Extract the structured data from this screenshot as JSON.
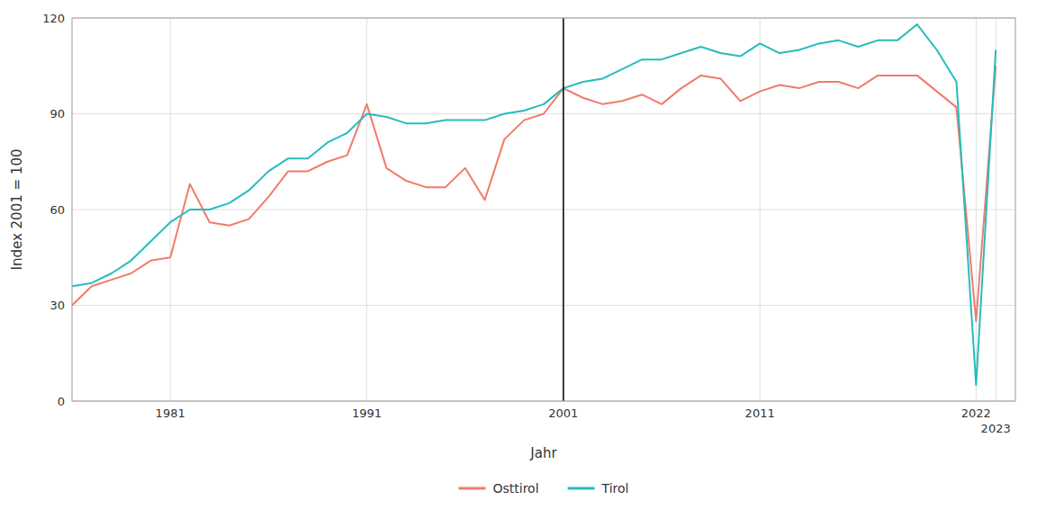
{
  "chart_data": {
    "type": "line",
    "xlabel": "Jahr",
    "ylabel": "Index 2001 = 100",
    "x": [
      1976,
      1977,
      1978,
      1979,
      1980,
      1981,
      1982,
      1983,
      1984,
      1985,
      1986,
      1987,
      1988,
      1989,
      1990,
      1991,
      1992,
      1993,
      1994,
      1995,
      1996,
      1997,
      1998,
      1999,
      2000,
      2001,
      2002,
      2003,
      2004,
      2005,
      2006,
      2007,
      2008,
      2009,
      2010,
      2011,
      2012,
      2013,
      2014,
      2015,
      2016,
      2017,
      2018,
      2019,
      2020,
      2021,
      2022,
      2023
    ],
    "series": [
      {
        "name": "Osttirol",
        "color": "#F07B6B",
        "values": [
          30,
          36,
          38,
          40,
          44,
          45,
          68,
          56,
          55,
          57,
          64,
          72,
          72,
          75,
          77,
          93,
          73,
          69,
          67,
          67,
          73,
          63,
          82,
          88,
          90,
          98,
          95,
          93,
          94,
          96,
          93,
          98,
          102,
          101,
          94,
          97,
          99,
          98,
          100,
          100,
          98,
          102,
          102,
          102,
          97,
          92,
          25,
          105
        ]
      },
      {
        "name": "Tirol",
        "color": "#26BCBC",
        "values": [
          36,
          37,
          40,
          44,
          50,
          56,
          60,
          60,
          62,
          66,
          72,
          76,
          76,
          81,
          84,
          90,
          89,
          87,
          87,
          88,
          88,
          88,
          90,
          91,
          93,
          98,
          100,
          101,
          104,
          107,
          107,
          109,
          111,
          109,
          108,
          112,
          109,
          110,
          112,
          113,
          111,
          113,
          113,
          118,
          110,
          100,
          5,
          110
        ]
      }
    ],
    "vline": 2001,
    "xlim": [
      1976,
      2024
    ],
    "xticks": [
      1981,
      1991,
      2001,
      2011,
      2022,
      2023
    ],
    "ylim": [
      0,
      120
    ],
    "yticks": [
      0,
      30,
      60,
      90,
      120
    ],
    "grid": true,
    "legend": "bottom"
  }
}
